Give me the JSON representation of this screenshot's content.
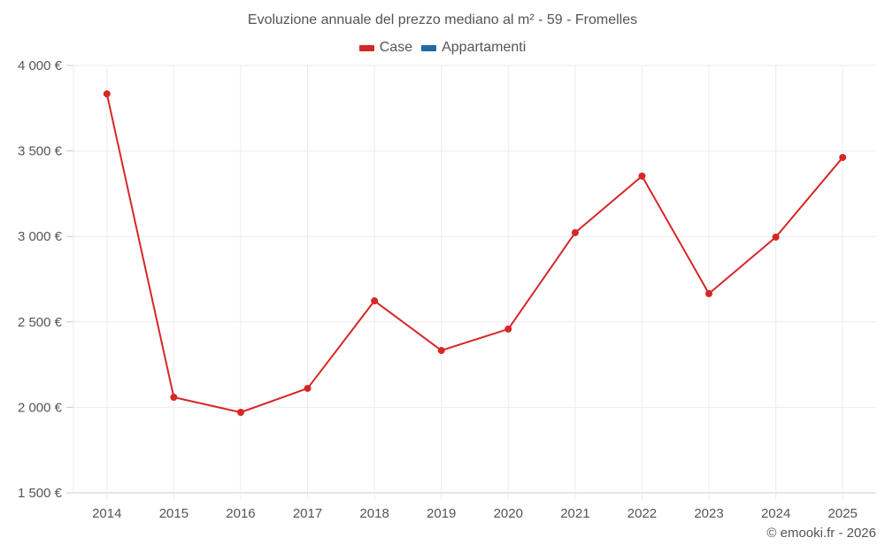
{
  "chart_data": {
    "type": "line",
    "title": "Evoluzione annuale del prezzo mediano al m² - 59 - Fromelles",
    "xlabel": "",
    "ylabel": "",
    "categories": [
      "2014",
      "2015",
      "2016",
      "2017",
      "2018",
      "2019",
      "2020",
      "2021",
      "2022",
      "2023",
      "2024",
      "2025"
    ],
    "series": [
      {
        "name": "Case",
        "color": "#d62728",
        "values": [
          3834,
          2059,
          1971,
          2111,
          2623,
          2333,
          2458,
          3022,
          3353,
          2665,
          2996,
          3462
        ]
      },
      {
        "name": "Appartamenti",
        "color": "#1f6aa5",
        "values": []
      }
    ],
    "ylim": [
      1500,
      4000
    ],
    "yticks": [
      1500,
      2000,
      2500,
      3000,
      3500,
      4000
    ],
    "ytick_labels": [
      "1 500 €",
      "2 000 €",
      "2 500 €",
      "3 000 €",
      "3 500 €",
      "4 000 €"
    ],
    "grid": true,
    "legend_position": "top"
  },
  "title": "Evoluzione annuale del prezzo mediano al m² - 59 - Fromelles",
  "legend": [
    {
      "label": "Case",
      "color": "#d62728"
    },
    {
      "label": "Appartamenti",
      "color": "#1f6aa5"
    }
  ],
  "credit": "© emooki.fr - 2026"
}
